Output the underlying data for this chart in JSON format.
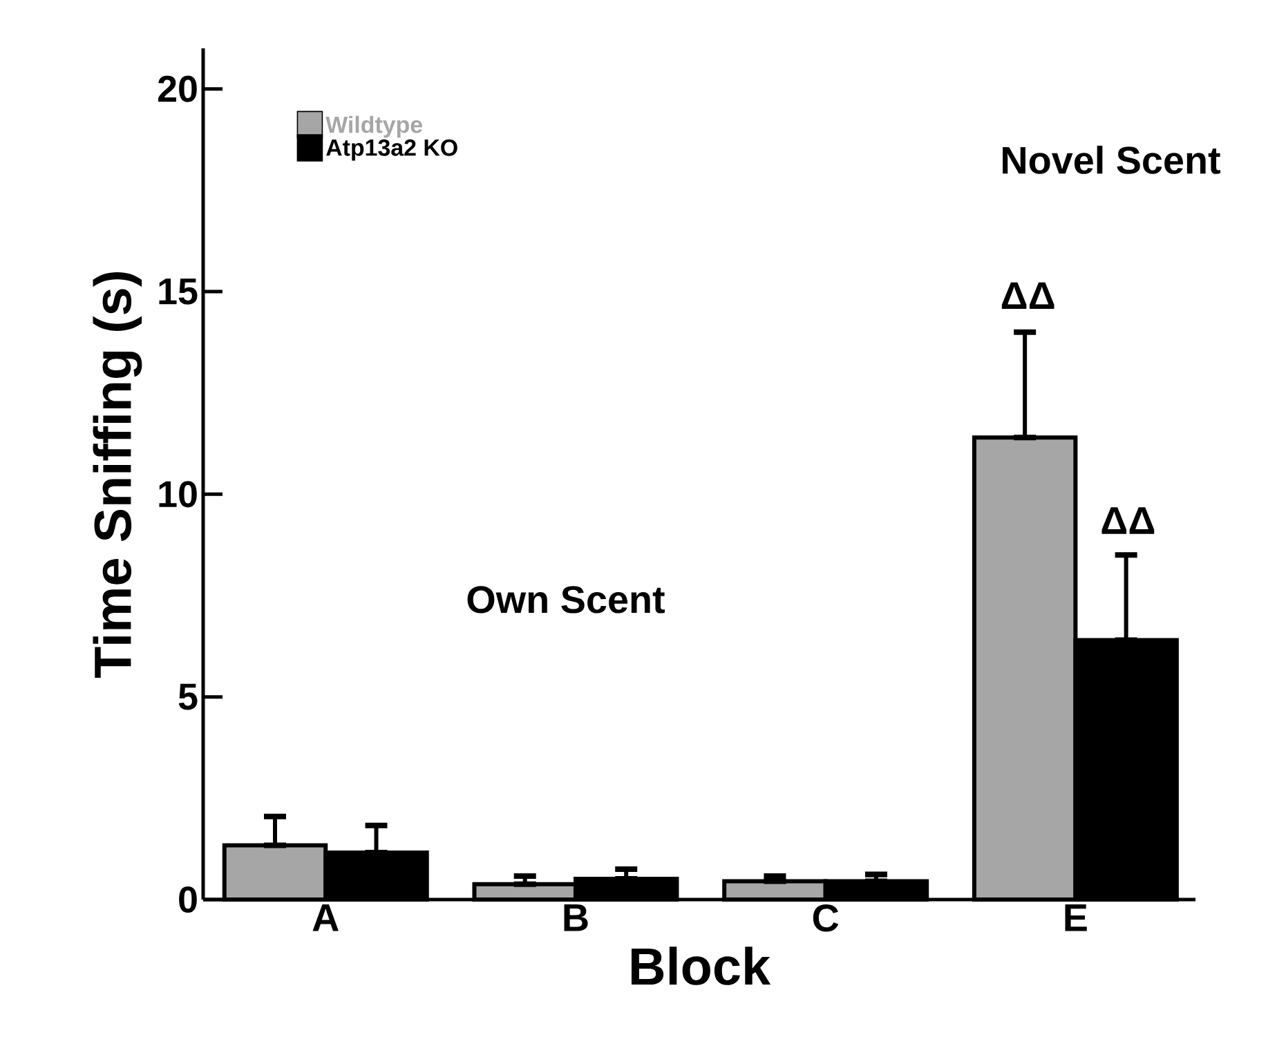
{
  "chart_data": {
    "type": "bar",
    "xlabel": "Block",
    "ylabel": "Time Sniffing (s)",
    "categories": [
      "A",
      "B",
      "C",
      "E"
    ],
    "series": [
      {
        "name": "Wildtype",
        "color": "#a6a6a6",
        "values": [
          1.34,
          0.38,
          0.45,
          11.4
        ],
        "errors": [
          [
            1.34,
            2.05
          ],
          [
            0.38,
            0.58
          ],
          [
            0.45,
            0.58
          ],
          [
            11.4,
            14.0
          ]
        ]
      },
      {
        "name": "Atp13a2 KO",
        "color": "#000000",
        "values": [
          1.16,
          0.51,
          0.45,
          6.4
        ],
        "errors": [
          [
            1.16,
            1.83
          ],
          [
            0.51,
            0.75
          ],
          [
            0.45,
            0.62
          ],
          [
            6.4,
            8.5
          ]
        ]
      }
    ],
    "ylim": [
      0,
      21
    ],
    "yticks": [
      0,
      5,
      10,
      15,
      20
    ],
    "grid": false,
    "legend": "top left",
    "annotations": [
      "ΔΔ",
      "ΔΔ",
      "Own Scent",
      "Novel Scent"
    ]
  }
}
